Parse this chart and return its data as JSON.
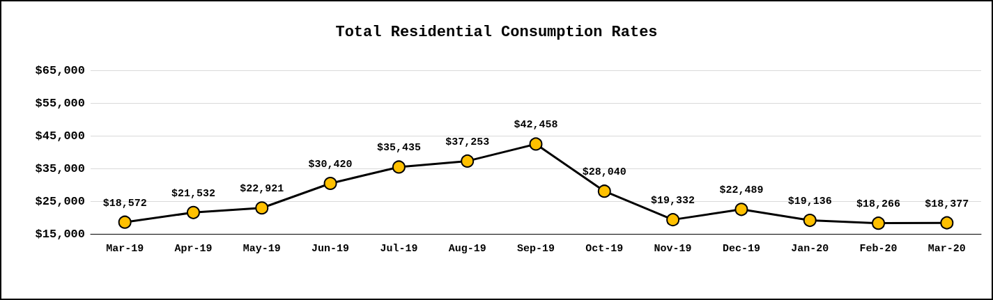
{
  "chart_data": {
    "type": "line",
    "title": "Total Residential Consumption Rates",
    "categories": [
      "Mar-19",
      "Apr-19",
      "May-19",
      "Jun-19",
      "Jul-19",
      "Aug-19",
      "Sep-19",
      "Oct-19",
      "Nov-19",
      "Dec-19",
      "Jan-20",
      "Feb-20",
      "Mar-20"
    ],
    "series": [
      {
        "color": "#ffc000",
        "values": [
          18572,
          21532,
          22921,
          30420,
          35435,
          37253,
          42458,
          28040,
          19332,
          22489,
          19136,
          18266,
          18377
        ],
        "value_labels": [
          "$18,572",
          "$21,532",
          "$22,921",
          "$30,420",
          "$35,435",
          "$37,253",
          "$42,458",
          "$28,040",
          "$19,332",
          "$22,489",
          "$19,136",
          "$18,266",
          "$18,377"
        ]
      }
    ],
    "ylim": [
      15000,
      65000
    ],
    "yticks": [
      {
        "value": 15000,
        "label": "$15,000"
      },
      {
        "value": 25000,
        "label": "$25,000"
      },
      {
        "value": 35000,
        "label": "$35,000"
      },
      {
        "value": 45000,
        "label": "$45,000"
      },
      {
        "value": 55000,
        "label": "$55,000"
      },
      {
        "value": 65000,
        "label": "$65,000"
      }
    ],
    "grid": "y",
    "marker": "circle",
    "line_style": "solid"
  }
}
